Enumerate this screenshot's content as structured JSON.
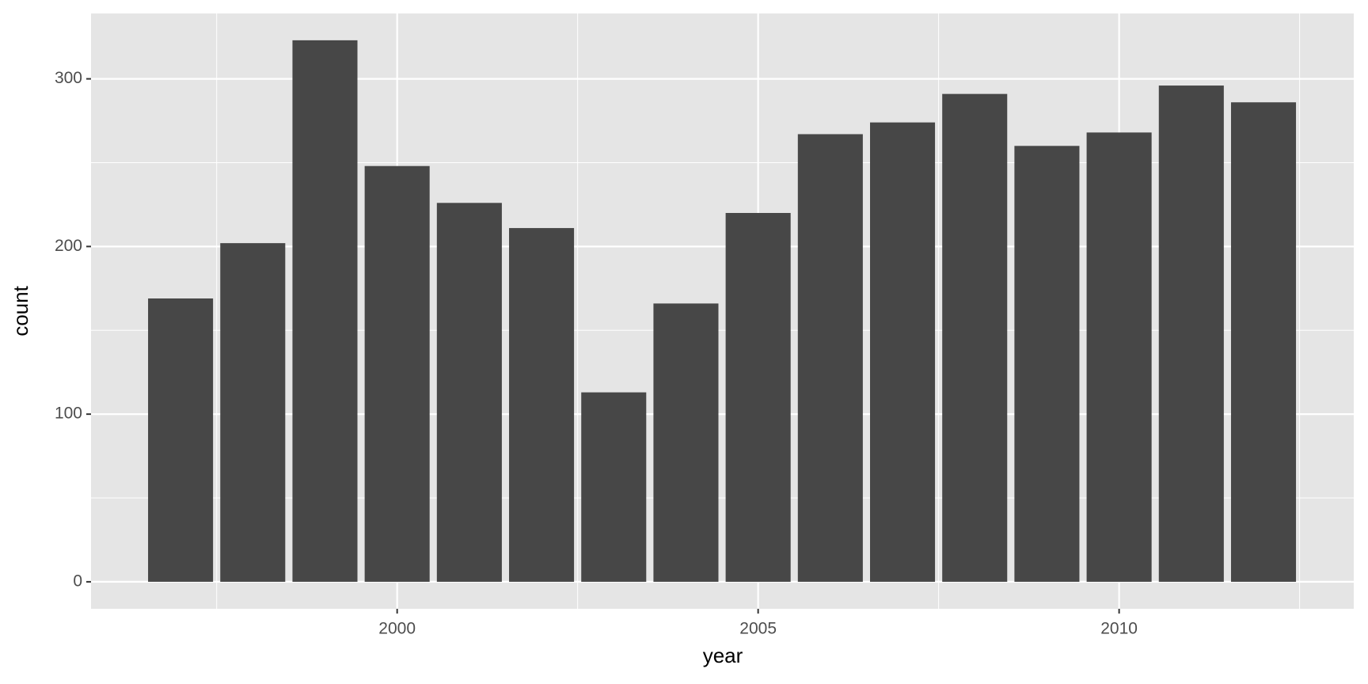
{
  "chart_data": {
    "type": "bar",
    "x_label": "year",
    "y_label": "count",
    "x": [
      1997,
      1998,
      1999,
      2000,
      2001,
      2002,
      2003,
      2004,
      2005,
      2006,
      2007,
      2008,
      2009,
      2010,
      2011,
      2012
    ],
    "values": [
      169,
      202,
      323,
      248,
      226,
      211,
      113,
      166,
      220,
      267,
      274,
      291,
      260,
      268,
      296,
      286
    ],
    "color": "#474747",
    "xlim": [
      1995.76,
      2013.25
    ],
    "xticks": [
      2000,
      2005,
      2010
    ],
    "x_minor_ticks": [
      1997.5,
      2002.5,
      2007.5,
      2012.5
    ],
    "ylim": [
      -16.1,
      339
    ],
    "yticks": [
      0,
      100,
      200,
      300
    ],
    "y_minor_ticks": [
      50,
      150,
      250
    ],
    "bar_width": 0.9,
    "grid": true,
    "panel_color": "#e5e5e5"
  }
}
